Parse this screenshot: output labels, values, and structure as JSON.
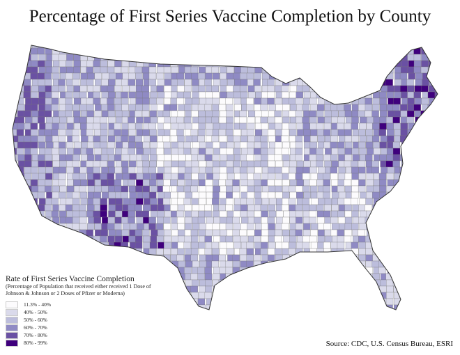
{
  "title": "Percentage of First Series Vaccine Completion by County",
  "legend": {
    "title": "Rate of First Series Vaccine Completion",
    "subtitle": "(Percentage of Population that received either received 1 Dose of Johnson & Johnson or 2 Doses of Pfizer or Moderna)",
    "items": [
      {
        "label": "11.3% - 40%",
        "color": "#fcfbfd"
      },
      {
        "label": "40% - 50%",
        "color": "#dadaeb"
      },
      {
        "label": "50% - 60%",
        "color": "#bcbddc"
      },
      {
        "label": "60% - 70%",
        "color": "#8f8ac4"
      },
      {
        "label": "70% - 80%",
        "color": "#6a51a3"
      },
      {
        "label": "80% - 99%",
        "color": "#3f007d"
      }
    ]
  },
  "source": "Source: CDC, U.S. Census Bureau, ESRI"
}
